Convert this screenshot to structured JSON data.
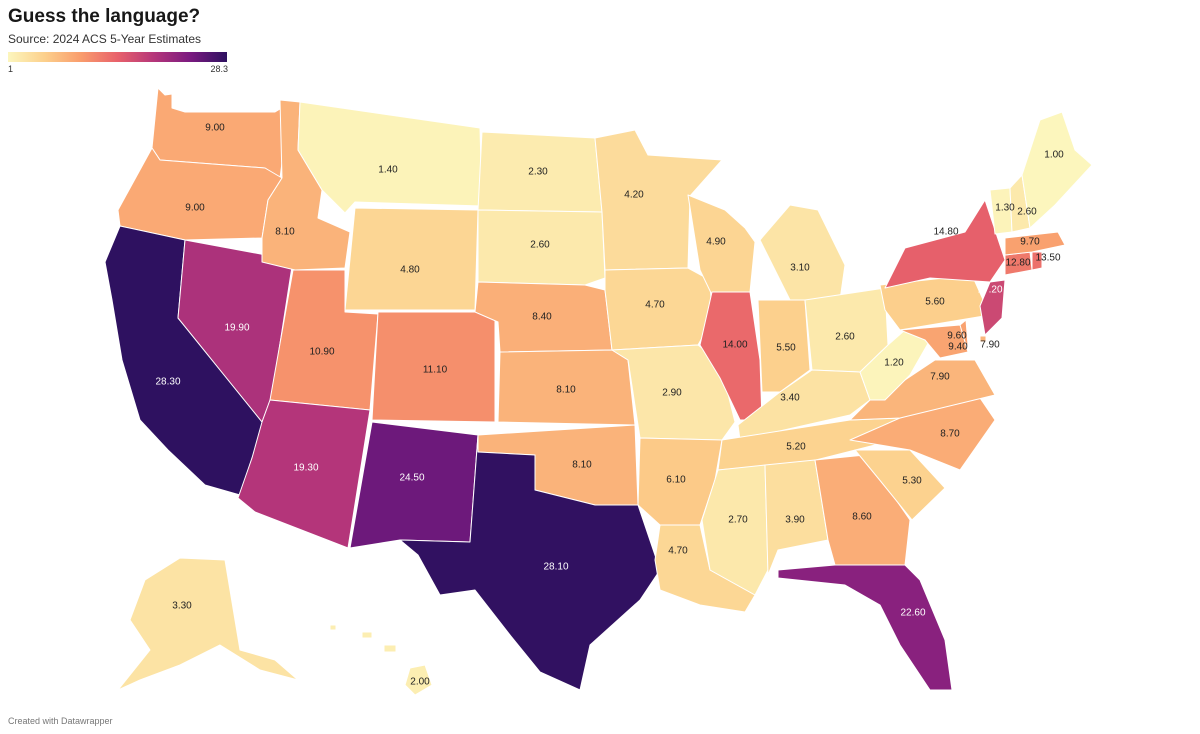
{
  "title": "Guess the language?",
  "subtitle": "Source: 2024 ACS 5-Year Estimates",
  "legend": {
    "min_label": "1",
    "max_label": "28.3",
    "min": 1,
    "max": 28.3,
    "colors": [
      "#fcf6bd",
      "#fcd08c",
      "#f99c6c",
      "#e8616b",
      "#b5367a",
      "#7a1a80",
      "#2e1160"
    ]
  },
  "footer": "Created with Datawrapper",
  "states": [
    {
      "abbr": "WA",
      "value": 9.0,
      "label": "9.00"
    },
    {
      "abbr": "OR",
      "value": 9.0,
      "label": "9.00"
    },
    {
      "abbr": "CA",
      "value": 28.3,
      "label": "28.30"
    },
    {
      "abbr": "NV",
      "value": 19.9,
      "label": "19.90"
    },
    {
      "abbr": "ID",
      "value": 8.1,
      "label": "8.10"
    },
    {
      "abbr": "MT",
      "value": 1.4,
      "label": "1.40"
    },
    {
      "abbr": "WY",
      "value": 4.8,
      "label": "4.80"
    },
    {
      "abbr": "UT",
      "value": 10.9,
      "label": "10.90"
    },
    {
      "abbr": "AZ",
      "value": 19.3,
      "label": "19.30"
    },
    {
      "abbr": "CO",
      "value": 11.1,
      "label": "11.10"
    },
    {
      "abbr": "NM",
      "value": 24.5,
      "label": "24.50"
    },
    {
      "abbr": "ND",
      "value": 2.3,
      "label": "2.30"
    },
    {
      "abbr": "SD",
      "value": 2.6,
      "label": "2.60"
    },
    {
      "abbr": "NE",
      "value": 8.4,
      "label": "8.40"
    },
    {
      "abbr": "KS",
      "value": 8.1,
      "label": "8.10"
    },
    {
      "abbr": "OK",
      "value": 8.1,
      "label": "8.10"
    },
    {
      "abbr": "TX",
      "value": 28.1,
      "label": "28.10"
    },
    {
      "abbr": "MN",
      "value": 4.2,
      "label": "4.20"
    },
    {
      "abbr": "IA",
      "value": 4.7,
      "label": "4.70"
    },
    {
      "abbr": "MO",
      "value": 2.9,
      "label": "2.90"
    },
    {
      "abbr": "AR",
      "value": 6.1,
      "label": "6.10"
    },
    {
      "abbr": "LA",
      "value": 4.7,
      "label": "4.70"
    },
    {
      "abbr": "WI",
      "value": 4.9,
      "label": "4.90"
    },
    {
      "abbr": "IL",
      "value": 14.0,
      "label": "14.00"
    },
    {
      "abbr": "MI",
      "value": 3.1,
      "label": "3.10"
    },
    {
      "abbr": "IN",
      "value": 5.5,
      "label": "5.50"
    },
    {
      "abbr": "OH",
      "value": 2.6,
      "label": "2.60"
    },
    {
      "abbr": "KY",
      "value": 3.4,
      "label": "3.40"
    },
    {
      "abbr": "TN",
      "value": 5.2,
      "label": "5.20"
    },
    {
      "abbr": "MS",
      "value": 2.7,
      "label": "2.70"
    },
    {
      "abbr": "AL",
      "value": 3.9,
      "label": "3.90"
    },
    {
      "abbr": "GA",
      "value": 8.6,
      "label": "8.60"
    },
    {
      "abbr": "FL",
      "value": 22.6,
      "label": "22.60"
    },
    {
      "abbr": "SC",
      "value": 5.3,
      "label": "5.30"
    },
    {
      "abbr": "NC",
      "value": 8.7,
      "label": "8.70"
    },
    {
      "abbr": "VA",
      "value": 7.9,
      "label": "7.90"
    },
    {
      "abbr": "WV",
      "value": 1.2,
      "label": "1.20"
    },
    {
      "abbr": "PA",
      "value": 5.6,
      "label": "5.60"
    },
    {
      "abbr": "NY",
      "value": 14.8,
      "label": "14.80"
    },
    {
      "abbr": "NJ",
      "value": 17.2,
      "label": "17.20"
    },
    {
      "abbr": "DE",
      "value": 9.6,
      "label": "9.60"
    },
    {
      "abbr": "MD",
      "value": 9.4,
      "label": "9.40"
    },
    {
      "abbr": "DC",
      "value": 7.9,
      "label": "7.90"
    },
    {
      "abbr": "CT",
      "value": 12.8,
      "label": "12.80"
    },
    {
      "abbr": "RI",
      "value": 13.5,
      "label": "13.50"
    },
    {
      "abbr": "MA",
      "value": 9.7,
      "label": "9.70"
    },
    {
      "abbr": "VT",
      "value": 1.3,
      "label": "1.30"
    },
    {
      "abbr": "NH",
      "value": 2.6,
      "label": "2.60"
    },
    {
      "abbr": "ME",
      "value": 1.0,
      "label": "1.00"
    },
    {
      "abbr": "AK",
      "value": 3.3,
      "label": "3.30"
    },
    {
      "abbr": "HI",
      "value": 2.0,
      "label": "2.00"
    }
  ]
}
